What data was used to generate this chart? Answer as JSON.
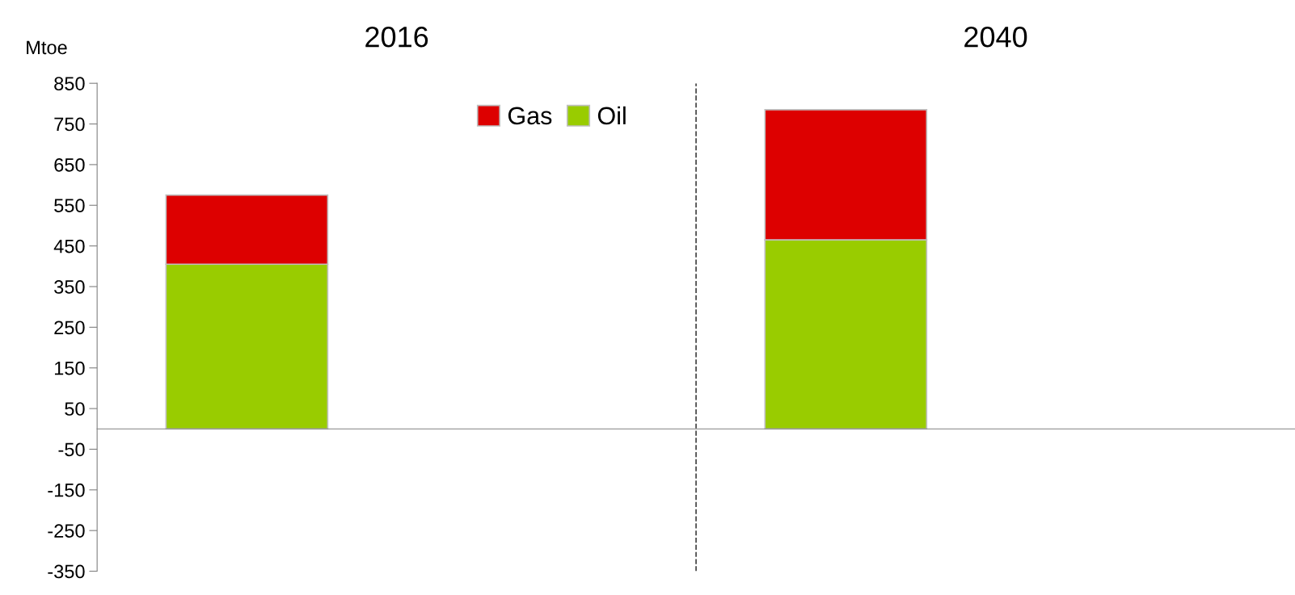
{
  "chart_data": {
    "type": "bar",
    "stacked": true,
    "ylabel": "Mtoe",
    "annotations": [
      "2016",
      "2040"
    ],
    "categories": [
      null,
      null,
      null,
      null
    ],
    "series": [
      {
        "name": "Oil",
        "color": "#99cc00",
        "values": [
          405,
          null,
          465,
          null
        ]
      },
      {
        "name": "Gas",
        "color": "#dd0000",
        "values": [
          170,
          null,
          320,
          null
        ]
      }
    ],
    "ylim": [
      -350,
      850
    ],
    "yticks": [
      -350,
      -250,
      -150,
      -50,
      50,
      150,
      250,
      350,
      450,
      550,
      650,
      750,
      850
    ],
    "legend": "top",
    "grid": false
  }
}
